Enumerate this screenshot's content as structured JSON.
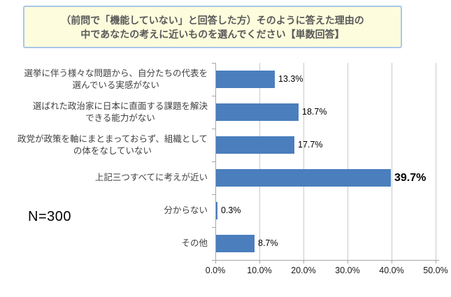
{
  "title": {
    "line1": "（前問で「機能していない」と回答した方）そのように答えた理由の",
    "line2": "中であなたの考えに近いものを選んでください【単数回答】"
  },
  "sample_size_label": "N=300",
  "chart_data": {
    "type": "bar",
    "orientation": "horizontal",
    "title": "（前問で「機能していない」と回答した方）そのように答えた理由の中であなたの考えに近いものを選んでください【単数回答】",
    "categories": [
      "選挙に伴う様々な問題から、自分たちの代表を\n選んでいる実感がない",
      "選ばれた政治家に日本に直面する課題を解決\nできる能力がない",
      "政党が政策を軸にまとまっておらず、組織として\nの体をなしていない",
      "上記三つすべてに考えが近い",
      "分からない",
      "その他"
    ],
    "values": [
      13.3,
      18.7,
      17.7,
      39.7,
      0.3,
      8.7
    ],
    "value_labels": [
      "13.3%",
      "18.7%",
      "17.7%",
      "39.7%",
      "0.3%",
      "8.7%"
    ],
    "emphasized_index": 3,
    "x_ticks": [
      "0.0%",
      "10.0%",
      "20.0%",
      "30.0%",
      "40.0%",
      "50.0%"
    ],
    "x_tick_values": [
      0,
      10,
      20,
      30,
      40,
      50
    ],
    "xlim": [
      0,
      50
    ],
    "grid": true,
    "legend": false,
    "sample_size": "N=300",
    "colors": {
      "bar": "#4A7EBD",
      "gridline": "#C9C9C9",
      "axis": "#A6A6A6",
      "category_text": "#3F3F3F",
      "value_text": "#000000",
      "title_box_background": "#FDFDDD",
      "title_box_border": "#A9C7E8",
      "title_text": "#595959"
    }
  }
}
